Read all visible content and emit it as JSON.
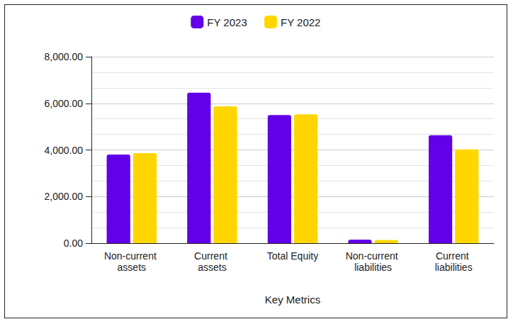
{
  "chart_data": {
    "type": "bar",
    "x_label": "Key Metrics",
    "categories": [
      "Non-current assets",
      "Current assets",
      "Total Equity",
      "Non-current liabilities",
      "Current liabilities"
    ],
    "series": [
      {
        "name": "FY 2023",
        "color": "#6200ea",
        "values": [
          3800,
          6460,
          5500,
          150,
          4630
        ]
      },
      {
        "name": "FY 2022",
        "color": "#ffd600",
        "values": [
          3860,
          5870,
          5530,
          140,
          4020
        ]
      }
    ],
    "ylim": [
      0,
      8000
    ],
    "yticks": [
      {
        "value": 0,
        "label": "0.00"
      },
      {
        "value": 2000,
        "label": "2,000.00"
      },
      {
        "value": 4000,
        "label": "4,000.00"
      },
      {
        "value": 6000,
        "label": "6,000.00"
      },
      {
        "value": 8000,
        "label": "8,000.00"
      }
    ],
    "grid": true,
    "legend": "top"
  }
}
